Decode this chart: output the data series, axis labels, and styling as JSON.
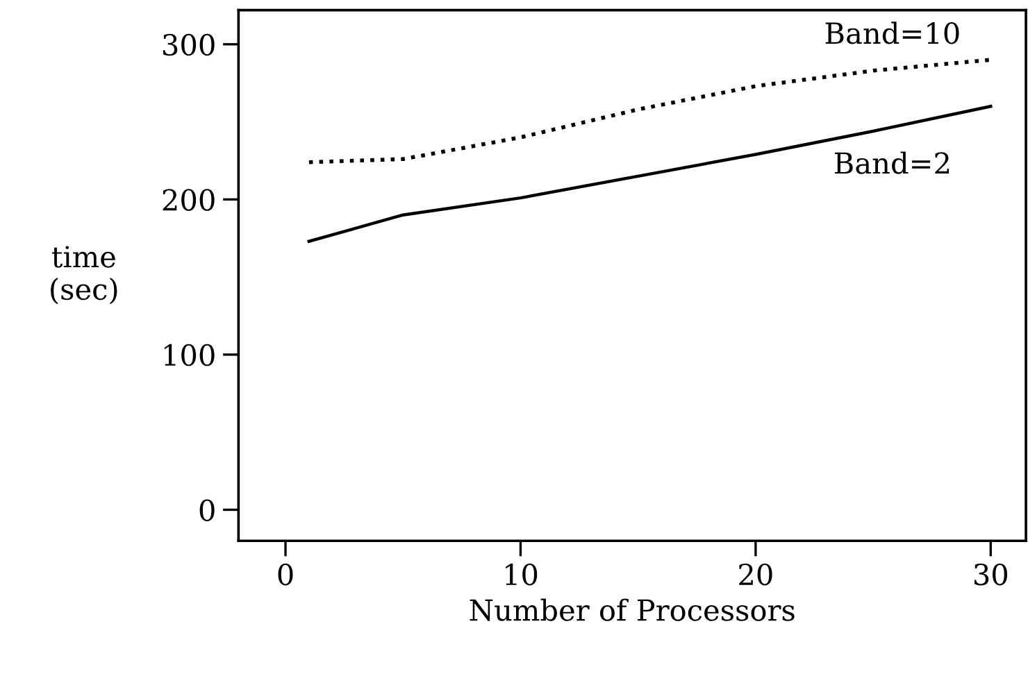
{
  "chart_data": {
    "type": "line",
    "xlabel": "Number of Processors",
    "ylabel": "time\n(sec)",
    "xlim": [
      -2,
      31.5
    ],
    "ylim": [
      -20,
      322
    ],
    "xticks": [
      0,
      10,
      20,
      30
    ],
    "yticks": [
      0,
      100,
      200,
      300
    ],
    "grid": false,
    "legend": false,
    "series": [
      {
        "name": "Band=10",
        "color": "#000000",
        "line_style": "dotted",
        "x": [
          1,
          5,
          10,
          15,
          20,
          25,
          30
        ],
        "values": [
          224,
          226,
          240,
          258,
          273,
          283,
          290
        ]
      },
      {
        "name": "Band=2",
        "color": "#000000",
        "line_style": "solid",
        "x": [
          1,
          5,
          10,
          15,
          20,
          25,
          30
        ],
        "values": [
          173,
          190,
          201,
          215,
          229,
          244,
          260
        ]
      }
    ]
  }
}
